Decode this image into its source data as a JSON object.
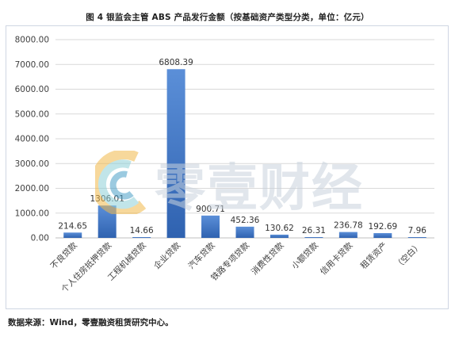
{
  "title": "图 4  银监会主管 ABS 产品发行金额（按基础资产类型分类，单位：亿元）",
  "source": "数据来源：Wind，零壹融资租赁研究中心。",
  "watermark": {
    "text": "零壹财经",
    "logo": "零壹财经 logo"
  },
  "colors": {
    "bar": "#3b6fbf",
    "bar_top": "#5a8ad6",
    "grid": "#d9d9d9",
    "axis_text": "#404040"
  },
  "chart_data": {
    "type": "bar",
    "categories": [
      "不良贷款",
      "个人住房抵押贷款",
      "工程机械贷款",
      "企业贷款",
      "汽车贷款",
      "铁路专项贷款",
      "消费性贷款",
      "小额贷款",
      "信用卡贷款",
      "租赁资产",
      "（空白）"
    ],
    "values": [
      214.65,
      1306.01,
      14.66,
      6808.39,
      900.71,
      452.36,
      130.62,
      26.31,
      236.78,
      192.69,
      7.96
    ],
    "data_labels": [
      "214.65",
      "1306.01",
      "14.66",
      "6808.39",
      "900.71",
      "452.36",
      "130.62",
      "26.31",
      "236.78",
      "192.69",
      "7.96"
    ],
    "yticks": [
      "0.00",
      "1000.00",
      "2000.00",
      "3000.00",
      "4000.00",
      "5000.00",
      "6000.00",
      "7000.00",
      "8000.00"
    ],
    "ylim": [
      0,
      8000
    ],
    "grid": true,
    "xlabel": "",
    "ylabel": ""
  }
}
